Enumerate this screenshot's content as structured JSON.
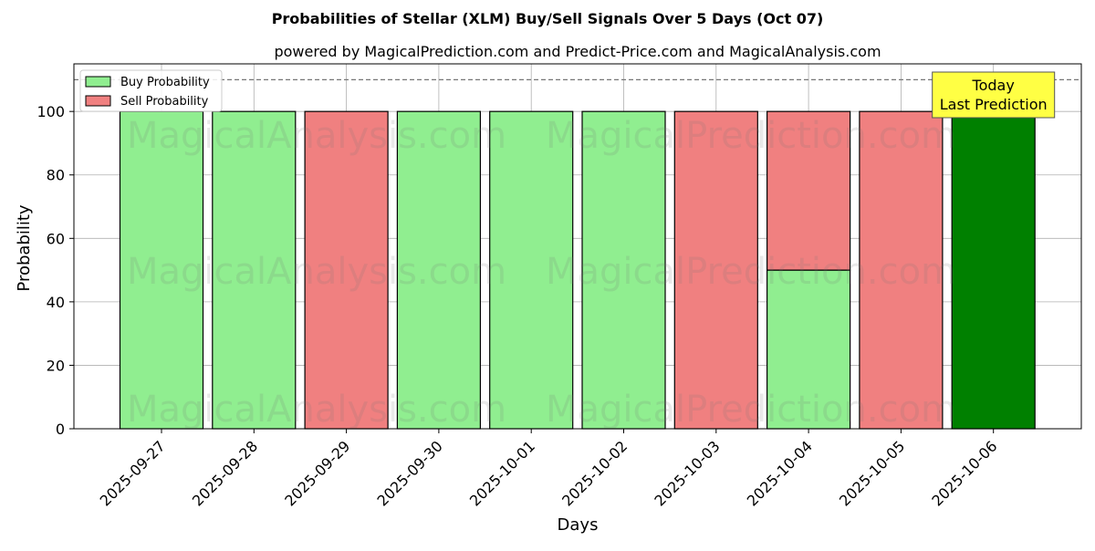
{
  "chart_data": {
    "type": "bar",
    "title": "Probabilities of Stellar (XLM) Buy/Sell Signals Over 5 Days (Oct 07)",
    "subtitle": "powered by MagicalPrediction.com and Predict-Price.com and MagicalAnalysis.com",
    "xlabel": "Days",
    "ylabel": "Probability",
    "ylim": [
      0,
      115
    ],
    "yticks": [
      0,
      20,
      40,
      60,
      80,
      100
    ],
    "grid": true,
    "legend_position": "top-left",
    "categories": [
      "2025-09-27",
      "2025-09-28",
      "2025-09-29",
      "2025-09-30",
      "2025-10-01",
      "2025-10-02",
      "2025-10-03",
      "2025-10-04",
      "2025-10-05",
      "2025-10-06"
    ],
    "series": [
      {
        "name": "Buy Probability",
        "color": "#90ee90",
        "values": [
          100,
          100,
          0,
          100,
          100,
          100,
          0,
          50,
          0,
          100
        ]
      },
      {
        "name": "Sell Probability",
        "color": "#f08080",
        "values": [
          0,
          0,
          100,
          0,
          0,
          0,
          100,
          50,
          100,
          0
        ]
      }
    ],
    "highlight": {
      "index": 9,
      "color": "#008000"
    },
    "reference_line": {
      "y": 110,
      "style": "dashed"
    },
    "annotation": {
      "line1": "Today",
      "line2": "Last Prediction",
      "color": "#ffff44"
    },
    "watermarks": [
      "MagicalAnalysis.com",
      "MagicalPrediction.com"
    ]
  }
}
